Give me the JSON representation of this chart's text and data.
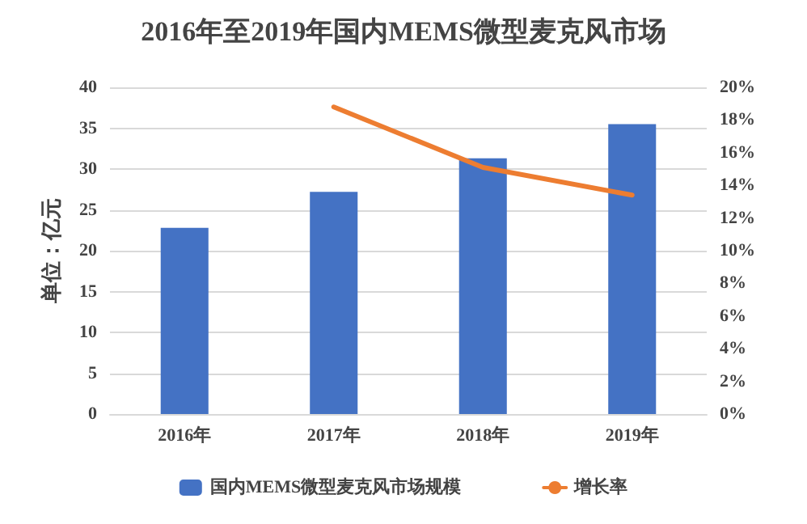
{
  "chart_data": {
    "type": "bar",
    "title": "2016年至2019年国内MEMS微型麦克风市场",
    "categories": [
      "2016年",
      "2017年",
      "2018年",
      "2019年"
    ],
    "series": [
      {
        "name": "国内MEMS微型麦克风市场规模",
        "color": "#4472c4",
        "values": [
          22.8,
          27.2,
          31.3,
          35.5
        ]
      },
      {
        "name": "增长率",
        "type": "line",
        "axis": "y2",
        "color": "#ed7d31",
        "marker": "none",
        "values": [
          null,
          18.8,
          15.1,
          13.4
        ]
      }
    ],
    "ylabel": "单位：亿元",
    "ylim": [
      0,
      40
    ],
    "yticks": [
      0,
      5,
      10,
      15,
      20,
      25,
      30,
      35,
      40
    ],
    "y2lim": [
      0,
      20
    ],
    "y2ticks": [
      {
        "value": 0,
        "label": "0%"
      },
      {
        "value": 2,
        "label": "2%"
      },
      {
        "value": 4,
        "label": "4%"
      },
      {
        "value": 6,
        "label": "6%"
      },
      {
        "value": 8,
        "label": "8%"
      },
      {
        "value": 10,
        "label": "10%"
      },
      {
        "value": 12,
        "label": "12%"
      },
      {
        "value": 14,
        "label": "14%"
      },
      {
        "value": 16,
        "label": "16%"
      },
      {
        "value": 18,
        "label": "18%"
      },
      {
        "value": 20,
        "label": "20%"
      }
    ],
    "grid": "y",
    "legend": "bottom"
  }
}
